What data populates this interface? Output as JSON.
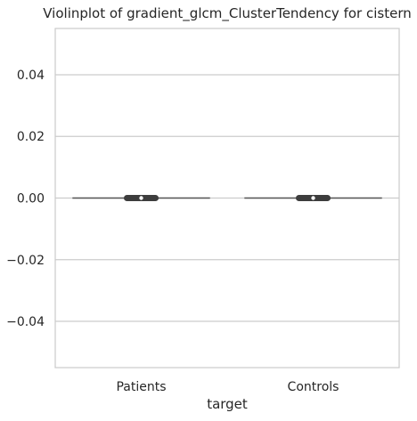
{
  "chart_data": {
    "type": "violin",
    "title": "Violinplot of gradient_glcm_ClusterTendency for cistern",
    "xlabel": "target",
    "ylabel": "",
    "categories": [
      "Patients",
      "Controls"
    ],
    "ylim": [
      -0.055,
      0.055
    ],
    "yticks": [
      -0.04,
      -0.02,
      0.0,
      0.02,
      0.04
    ],
    "ytick_labels": [
      "−0.04",
      "−0.02",
      "0.00",
      "0.02",
      "0.04"
    ],
    "grid": "horizontal",
    "series": [
      {
        "category": "Patients",
        "values_min": 0.0,
        "values_max": 0.0,
        "median": 0.0
      },
      {
        "category": "Controls",
        "values_min": 0.0,
        "values_max": 0.0,
        "median": 0.0
      }
    ],
    "colors": {
      "grid": "#cccccc",
      "axes": "#cccccc",
      "line": "#555555",
      "box": "#3d3d3d",
      "text": "#262626"
    }
  }
}
